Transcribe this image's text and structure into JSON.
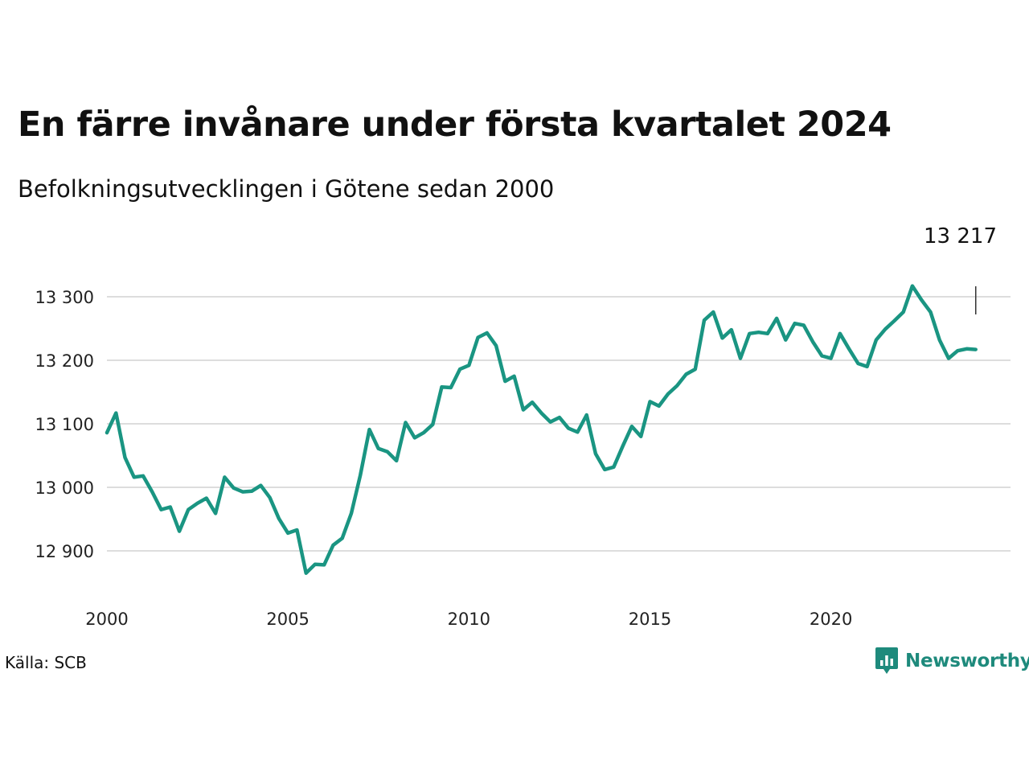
{
  "title": "En färre invånare under första kvartalet 2024",
  "subtitle": "Befolkningsutvecklingen i Götene sedan 2000",
  "source": "Källa: SCB",
  "brand": "Newsworthy",
  "colors": {
    "line": "#1a9582",
    "grid": "#dddddd",
    "brand": "#1e8a7c"
  },
  "chart_data": {
    "type": "line",
    "title": "En färre invånare under första kvartalet 2024",
    "subtitle": "Befolkningsutvecklingen i Götene sedan 2000",
    "xlabel": "",
    "ylabel": "",
    "x_ticks": [
      2000,
      2005,
      2010,
      2015,
      2020
    ],
    "y_ticks": [
      12900,
      13000,
      13100,
      13200,
      13300
    ],
    "y_tick_labels": [
      "12 900",
      "13 000",
      "13 100",
      "13 200",
      "13 300"
    ],
    "x_range": [
      2000,
      2024.25
    ],
    "y_range": [
      12833,
      13362
    ],
    "grid": true,
    "last_value_label": "13 217",
    "series": [
      {
        "points": [
          [
            2000.0,
            13086
          ],
          [
            2000.25,
            13117
          ],
          [
            2000.5,
            13047
          ],
          [
            2000.75,
            13016
          ],
          [
            2001.0,
            13018
          ],
          [
            2001.25,
            12993
          ],
          [
            2001.5,
            12965
          ],
          [
            2001.75,
            12969
          ],
          [
            2002.0,
            12931
          ],
          [
            2002.25,
            12965
          ],
          [
            2002.5,
            12975
          ],
          [
            2002.75,
            12983
          ],
          [
            2003.0,
            12959
          ],
          [
            2003.25,
            13016
          ],
          [
            2003.5,
            12999
          ],
          [
            2003.75,
            12993
          ],
          [
            2004.0,
            12994
          ],
          [
            2004.25,
            13003
          ],
          [
            2004.5,
            12984
          ],
          [
            2004.75,
            12951
          ],
          [
            2005.0,
            12928
          ],
          [
            2005.25,
            12933
          ],
          [
            2005.5,
            12865
          ],
          [
            2005.75,
            12879
          ],
          [
            2006.0,
            12878
          ],
          [
            2006.25,
            12909
          ],
          [
            2006.5,
            12920
          ],
          [
            2006.75,
            12959
          ],
          [
            2007.0,
            13019
          ],
          [
            2007.25,
            13091
          ],
          [
            2007.5,
            13061
          ],
          [
            2007.75,
            13056
          ],
          [
            2008.0,
            13042
          ],
          [
            2008.25,
            13102
          ],
          [
            2008.5,
            13078
          ],
          [
            2008.75,
            13086
          ],
          [
            2009.0,
            13099
          ],
          [
            2009.25,
            13158
          ],
          [
            2009.5,
            13157
          ],
          [
            2009.75,
            13186
          ],
          [
            2010.0,
            13192
          ],
          [
            2010.25,
            13236
          ],
          [
            2010.5,
            13243
          ],
          [
            2010.75,
            13223
          ],
          [
            2011.0,
            13167
          ],
          [
            2011.25,
            13175
          ],
          [
            2011.5,
            13122
          ],
          [
            2011.75,
            13134
          ],
          [
            2012.0,
            13117
          ],
          [
            2012.25,
            13103
          ],
          [
            2012.5,
            13110
          ],
          [
            2012.75,
            13093
          ],
          [
            2013.0,
            13087
          ],
          [
            2013.25,
            13114
          ],
          [
            2013.5,
            13053
          ],
          [
            2013.75,
            13028
          ],
          [
            2014.0,
            13032
          ],
          [
            2014.25,
            13065
          ],
          [
            2014.5,
            13096
          ],
          [
            2014.75,
            13080
          ],
          [
            2015.0,
            13135
          ],
          [
            2015.25,
            13128
          ],
          [
            2015.5,
            13147
          ],
          [
            2015.75,
            13160
          ],
          [
            2016.0,
            13178
          ],
          [
            2016.25,
            13186
          ],
          [
            2016.5,
            13263
          ],
          [
            2016.75,
            13276
          ],
          [
            2017.0,
            13235
          ],
          [
            2017.25,
            13248
          ],
          [
            2017.5,
            13203
          ],
          [
            2017.75,
            13242
          ],
          [
            2018.0,
            13244
          ],
          [
            2018.25,
            13242
          ],
          [
            2018.5,
            13266
          ],
          [
            2018.75,
            13232
          ],
          [
            2019.0,
            13258
          ],
          [
            2019.25,
            13255
          ],
          [
            2019.5,
            13229
          ],
          [
            2019.75,
            13207
          ],
          [
            2020.0,
            13203
          ],
          [
            2020.25,
            13242
          ],
          [
            2020.5,
            13218
          ],
          [
            2020.75,
            13195
          ],
          [
            2021.0,
            13190
          ],
          [
            2021.25,
            13232
          ],
          [
            2021.5,
            13249
          ],
          [
            2021.75,
            13262
          ],
          [
            2022.0,
            13276
          ],
          [
            2022.25,
            13317
          ],
          [
            2022.5,
            13295
          ],
          [
            2022.75,
            13276
          ],
          [
            2023.0,
            13232
          ],
          [
            2023.25,
            13203
          ],
          [
            2023.5,
            13215
          ],
          [
            2023.75,
            13218
          ],
          [
            2024.0,
            13217
          ]
        ]
      }
    ]
  }
}
